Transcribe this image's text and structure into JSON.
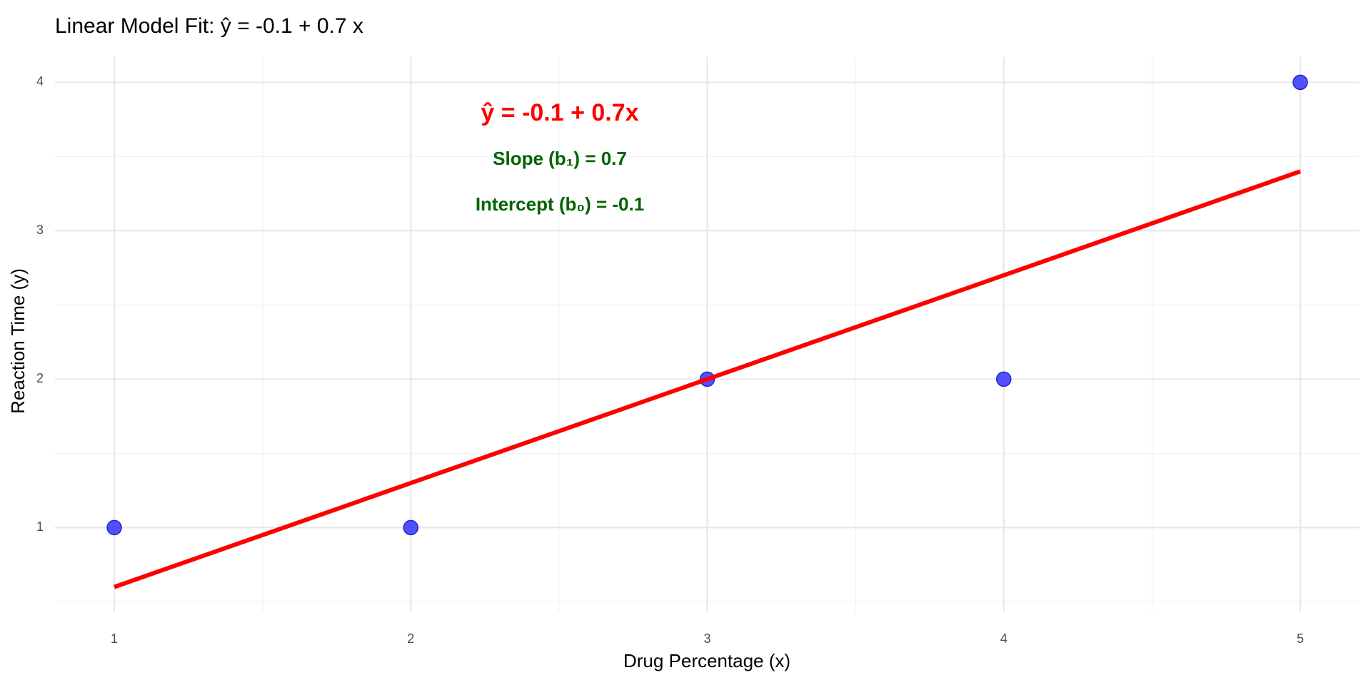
{
  "chart_data": {
    "type": "scatter",
    "title": "Linear Model Fit:  ŷ = -0.1 + 0.7 x",
    "x_label": "Drug Percentage (x)",
    "y_label": "Reaction Time (y)",
    "x": [
      1,
      2,
      3,
      4,
      5
    ],
    "values": [
      1,
      1,
      2,
      2,
      4
    ],
    "color": "#3333ff",
    "fit_line": {
      "x": [
        1,
        5
      ],
      "values": [
        0.6,
        3.4
      ],
      "color": "#ff0000"
    },
    "annotations": [
      "ŷ = -0.1 + 0.7x",
      "Slope (b₁) = 0.7",
      "Intercept (b₀) = -0.1"
    ],
    "xlim": [
      0.8,
      5.2
    ],
    "xticks": [
      1,
      2,
      3,
      4,
      5
    ],
    "xticks_minor": [
      1.5,
      2.5,
      3.5,
      4.5
    ],
    "ylim": [
      0.43,
      4.17
    ],
    "yticks": [
      1,
      2,
      3,
      4
    ],
    "yticks_minor": [
      0.5,
      1.5,
      2.5,
      3.5
    ],
    "grid": true
  }
}
